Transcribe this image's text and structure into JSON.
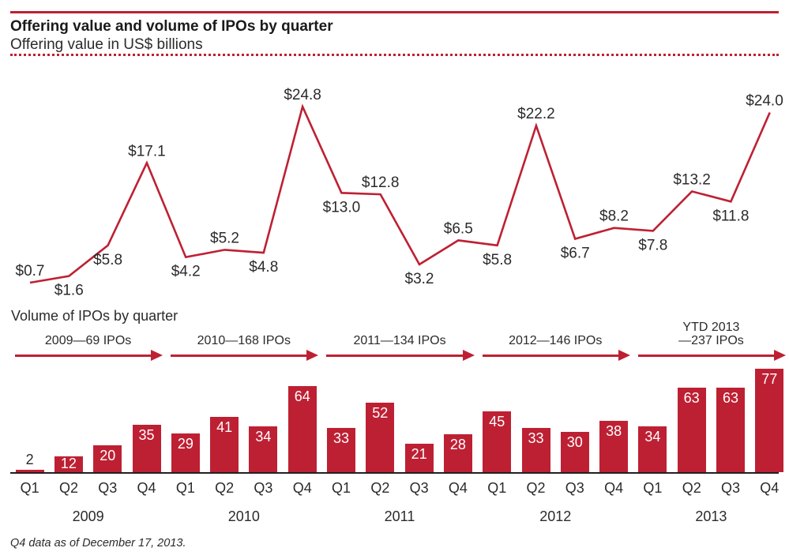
{
  "header": {
    "title": "Offering value and volume of IPOs by quarter",
    "subtitle": "Offering value in US$ billions"
  },
  "section": {
    "volume_label": "Volume of IPOs by quarter"
  },
  "footer": {
    "note": "Q4 data as of December 17, 2013."
  },
  "colors": {
    "accent_red": "#be2033",
    "axis_black": "#231f20",
    "bar_value_white": "#ffffff",
    "text_dark": "#2b2b2b",
    "background": "#ffffff"
  },
  "chart_data": [
    {
      "type": "line",
      "title": "Offering value in US$ billions",
      "ylabel": "Offering value (US$ billions)",
      "unit": "US$ billions",
      "x": [
        "2009 Q1",
        "2009 Q2",
        "2009 Q3",
        "2009 Q4",
        "2010 Q1",
        "2010 Q2",
        "2010 Q3",
        "2010 Q4",
        "2011 Q1",
        "2011 Q2",
        "2011 Q3",
        "2011 Q4",
        "2012 Q1",
        "2012 Q2",
        "2012 Q3",
        "2012 Q4",
        "2013 Q1",
        "2013 Q2",
        "2013 Q3",
        "2013 Q4"
      ],
      "values": [
        0.7,
        1.6,
        5.8,
        17.1,
        4.2,
        5.2,
        4.8,
        24.8,
        13.0,
        12.8,
        3.2,
        6.5,
        5.8,
        22.2,
        6.7,
        8.2,
        7.8,
        13.2,
        11.8,
        24.0
      ],
      "point_labels": [
        "$0.7",
        "$1.6",
        "$5.8",
        "$17.1",
        "$4.2",
        "$5.2",
        "$4.8",
        "$24.8",
        "$13.0",
        "$12.8",
        "$3.2",
        "$6.5",
        "$5.8",
        "$22.2",
        "$6.7",
        "$8.2",
        "$7.8",
        "$13.2",
        "$11.8",
        "$24.0"
      ],
      "label_positions": [
        "above",
        "below",
        "below",
        "above",
        "below",
        "above",
        "below",
        "above",
        "below",
        "above",
        "below",
        "above",
        "below",
        "above",
        "below",
        "above",
        "below",
        "above",
        "below",
        "above"
      ],
      "ylim": [
        0,
        26
      ],
      "grid": false,
      "legend": "none"
    },
    {
      "type": "bar",
      "title": "Volume of IPOs by quarter",
      "categories": [
        "Q1",
        "Q2",
        "Q3",
        "Q4",
        "Q1",
        "Q2",
        "Q3",
        "Q4",
        "Q1",
        "Q2",
        "Q3",
        "Q4",
        "Q1",
        "Q2",
        "Q3",
        "Q4",
        "Q1",
        "Q2",
        "Q3",
        "Q4"
      ],
      "values": [
        2,
        12,
        20,
        35,
        29,
        41,
        34,
        64,
        33,
        52,
        21,
        28,
        45,
        33,
        30,
        38,
        34,
        63,
        63,
        77
      ],
      "years": [
        "2009",
        "2010",
        "2011",
        "2012",
        "2013"
      ],
      "year_arrows": [
        {
          "label": "2009—69 IPOs",
          "year": "2009",
          "total_ipos": 69
        },
        {
          "label": "2010—168 IPOs",
          "year": "2010",
          "total_ipos": 168
        },
        {
          "label": "2011—134 IPOs",
          "year": "2011",
          "total_ipos": 134
        },
        {
          "label": "2012—146 IPOs",
          "year": "2012",
          "total_ipos": 146
        },
        {
          "label": "YTD 2013\n—237 IPOs",
          "year": "2013",
          "total_ipos": 237
        }
      ],
      "ylim": [
        0,
        80
      ],
      "grid": false,
      "legend": "none"
    }
  ]
}
